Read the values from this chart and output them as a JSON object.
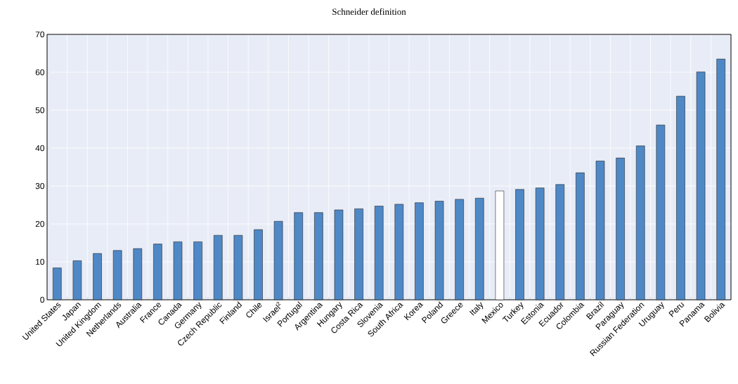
{
  "chart_data": {
    "type": "bar",
    "subtitle": "Schneider definition",
    "categories": [
      "United States",
      "Japan",
      "United Kingdom",
      "Netherlands",
      "Australia",
      "France",
      "Canada",
      "Germany",
      "Czech Republic",
      "Finland",
      "Chile",
      "Israel$^{2}$",
      "Portugal",
      "Argentina",
      "Hungary",
      "Costa Rica",
      "Slovenia",
      "South Africa",
      "Korea",
      "Poland",
      "Greece",
      "Italy",
      "Mexico",
      "Turkey",
      "Estonia",
      "Ecuador",
      "Colombia",
      "Brazil",
      "Paraguay",
      "Russian Federation",
      "Uruguay",
      "Peru",
      "Panama",
      "Bolivia"
    ],
    "values": [
      8.4,
      10.3,
      12.2,
      13.0,
      13.5,
      14.7,
      15.3,
      15.3,
      17.0,
      17.0,
      18.5,
      20.7,
      23.0,
      23.0,
      23.7,
      24.0,
      24.7,
      25.2,
      25.6,
      26.0,
      26.5,
      26.8,
      28.7,
      29.1,
      29.5,
      30.4,
      33.5,
      36.6,
      37.4,
      40.6,
      46.1,
      53.7,
      60.1,
      63.5
    ],
    "colors": [
      "#4f88c6",
      "#4f88c6",
      "#4f88c6",
      "#4f88c6",
      "#4f88c6",
      "#4f88c6",
      "#4f88c6",
      "#4f88c6",
      "#4f88c6",
      "#4f88c6",
      "#4f88c6",
      "#4f88c6",
      "#4f88c6",
      "#4f88c6",
      "#4f88c6",
      "#4f88c6",
      "#4f88c6",
      "#4f88c6",
      "#4f88c6",
      "#4f88c6",
      "#4f88c6",
      "#4f88c6",
      "#ffffff",
      "#4f88c6",
      "#4f88c6",
      "#4f88c6",
      "#4f88c6",
      "#4f88c6",
      "#4f88c6",
      "#4f88c6",
      "#4f88c6",
      "#4f88c6",
      "#4f88c6",
      "#4f88c6"
    ],
    "ylim": [
      0,
      70
    ],
    "yticks": [
      0,
      10,
      20,
      30,
      40,
      50,
      60,
      70
    ],
    "grid": true
  }
}
